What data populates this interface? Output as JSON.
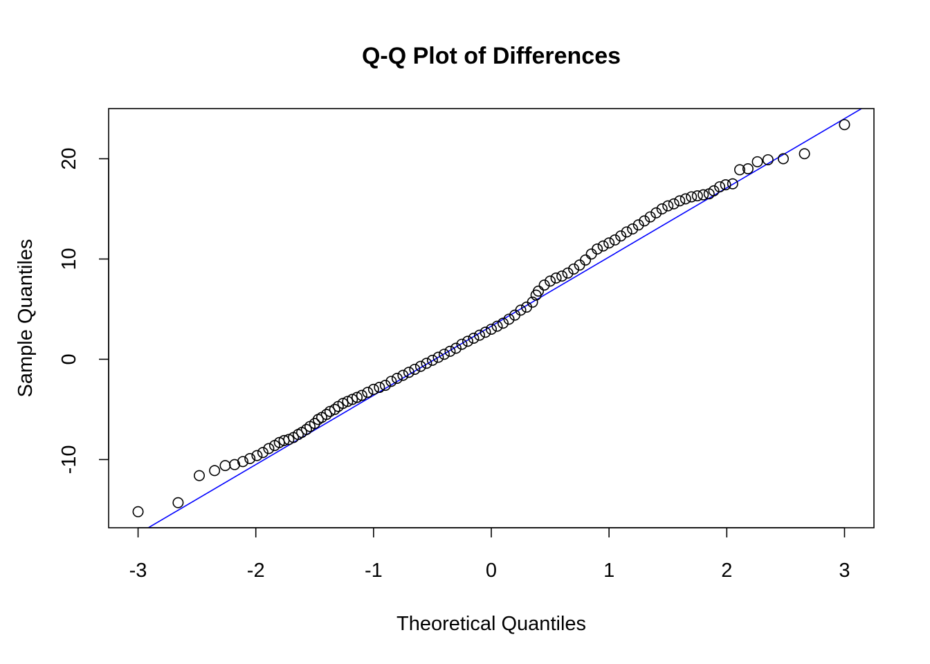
{
  "chart_data": {
    "type": "scatter",
    "title": "Q-Q Plot of Differences",
    "xlabel": "Theoretical Quantiles",
    "ylabel": "Sample Quantiles",
    "xlim": [
      -3.25,
      3.25
    ],
    "ylim": [
      -16.8,
      25.0
    ],
    "x_ticks": [
      -3,
      -2,
      -1,
      0,
      1,
      2,
      3
    ],
    "x_tick_labels": [
      "-3",
      "-2",
      "-1",
      "0",
      "1",
      "2",
      "3"
    ],
    "y_ticks": [
      -10,
      0,
      10,
      20
    ],
    "y_tick_labels": [
      "-10",
      "0",
      "10",
      "20"
    ],
    "grid": false,
    "point_shape": "open-circle",
    "reference_line": {
      "intercept": 3.3,
      "slope": 6.9,
      "color": "#0000ff"
    },
    "points": {
      "x": [
        -3.0,
        -2.66,
        -2.48,
        -2.35,
        -2.26,
        -2.18,
        -2.11,
        -2.05,
        -1.99,
        -1.94,
        -1.89,
        -1.84,
        -1.8,
        -1.76,
        -1.72,
        -1.68,
        -1.64,
        -1.61,
        -1.57,
        -1.54,
        -1.5,
        -1.47,
        -1.44,
        -1.4,
        -1.37,
        -1.33,
        -1.3,
        -1.26,
        -1.22,
        -1.18,
        -1.14,
        -1.1,
        -1.05,
        -1.0,
        -0.95,
        -0.9,
        -0.85,
        -0.8,
        -0.75,
        -0.7,
        -0.65,
        -0.6,
        -0.55,
        -0.5,
        -0.45,
        -0.4,
        -0.35,
        -0.3,
        -0.25,
        -0.2,
        -0.15,
        -0.1,
        -0.05,
        0.0,
        0.05,
        0.1,
        0.15,
        0.2,
        0.25,
        0.3,
        0.35,
        0.38,
        0.4,
        0.45,
        0.5,
        0.55,
        0.6,
        0.65,
        0.7,
        0.75,
        0.8,
        0.85,
        0.9,
        0.95,
        1.0,
        1.05,
        1.1,
        1.15,
        1.2,
        1.25,
        1.3,
        1.35,
        1.4,
        1.45,
        1.5,
        1.55,
        1.6,
        1.65,
        1.7,
        1.75,
        1.8,
        1.85,
        1.89,
        1.94,
        1.99,
        2.05,
        2.11,
        2.18,
        2.26,
        2.35,
        2.48,
        2.66,
        3.0
      ],
      "y": [
        -15.2,
        -14.3,
        -11.6,
        -11.1,
        -10.6,
        -10.5,
        -10.2,
        -9.9,
        -9.6,
        -9.3,
        -8.9,
        -8.6,
        -8.3,
        -8.1,
        -8.0,
        -7.8,
        -7.5,
        -7.3,
        -7.0,
        -6.7,
        -6.4,
        -6.0,
        -5.8,
        -5.5,
        -5.2,
        -5.0,
        -4.7,
        -4.4,
        -4.2,
        -4.0,
        -3.8,
        -3.6,
        -3.3,
        -3.0,
        -2.8,
        -2.6,
        -2.2,
        -1.9,
        -1.6,
        -1.3,
        -1.0,
        -0.7,
        -0.4,
        -0.1,
        0.2,
        0.5,
        0.8,
        1.1,
        1.5,
        1.8,
        2.1,
        2.4,
        2.7,
        3.0,
        3.3,
        3.6,
        4.0,
        4.4,
        4.9,
        5.2,
        5.7,
        6.4,
        6.8,
        7.4,
        7.8,
        8.1,
        8.3,
        8.6,
        9.0,
        9.4,
        9.9,
        10.5,
        11.0,
        11.3,
        11.6,
        11.9,
        12.3,
        12.7,
        13.0,
        13.4,
        13.8,
        14.2,
        14.6,
        15.0,
        15.3,
        15.5,
        15.8,
        16.0,
        16.2,
        16.3,
        16.4,
        16.5,
        16.8,
        17.2,
        17.4,
        17.5,
        18.9,
        19.0,
        19.7,
        19.9,
        20.0,
        20.5,
        23.4
      ]
    }
  }
}
